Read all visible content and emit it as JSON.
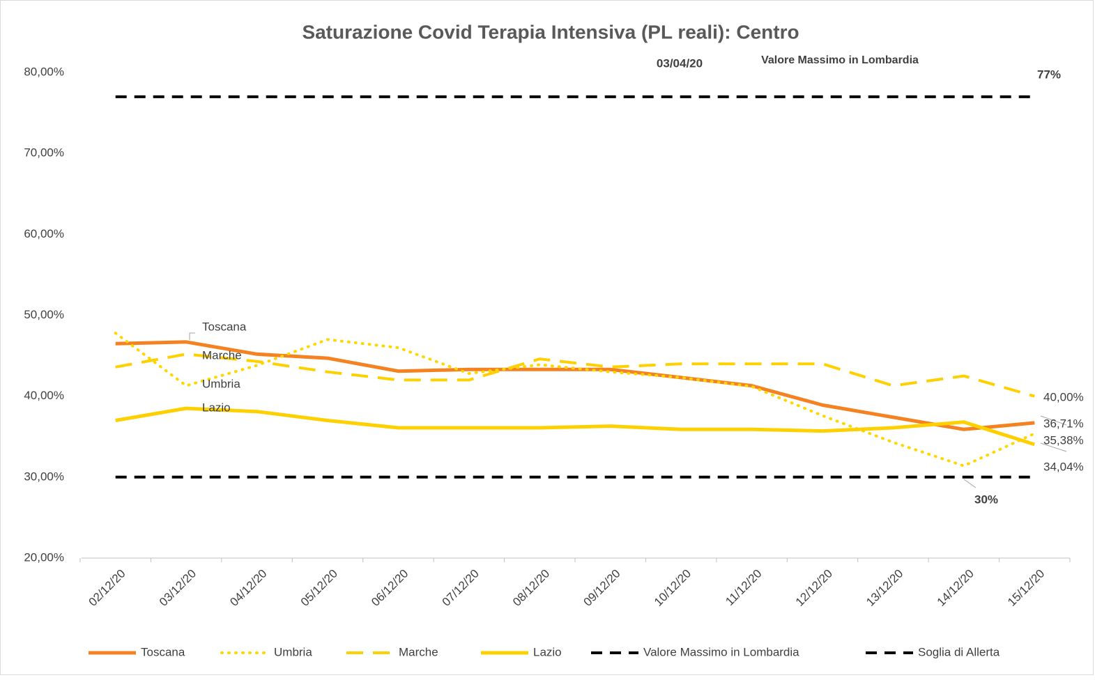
{
  "chart_data": {
    "type": "line",
    "title": "Saturazione Covid Terapia Intensiva (PL reali): Centro",
    "annotations": [
      "03/04/20",
      "Valore Massimo in Lombardia"
    ],
    "categories": [
      "02/12/20",
      "03/12/20",
      "04/12/20",
      "05/12/20",
      "06/12/20",
      "07/12/20",
      "08/12/20",
      "09/12/20",
      "10/12/20",
      "11/12/20",
      "12/12/20",
      "13/12/20",
      "14/12/20",
      "15/12/20"
    ],
    "ylim": [
      20,
      80
    ],
    "yticks": [
      {
        "value": 20,
        "label": "20,00%"
      },
      {
        "value": 30,
        "label": "30,00%"
      },
      {
        "value": 40,
        "label": "40,00%"
      },
      {
        "value": 50,
        "label": "50,00%"
      },
      {
        "value": 60,
        "label": "60,00%"
      },
      {
        "value": 70,
        "label": "70,00%"
      },
      {
        "value": 80,
        "label": "80,00%"
      }
    ],
    "grid": false,
    "legend": "bottom",
    "series": [
      {
        "name": "Toscana",
        "color": "#f58220",
        "dash": "solid",
        "values": [
          46.5,
          46.7,
          45.2,
          44.7,
          43.1,
          43.3,
          43.3,
          43.3,
          42.3,
          41.3,
          38.9,
          37.4,
          35.9,
          36.71
        ],
        "value_labels": [
          null,
          null,
          null,
          null,
          null,
          null,
          null,
          null,
          null,
          null,
          null,
          null,
          null,
          "36,71%"
        ]
      },
      {
        "name": "Umbria",
        "color": "#ffd700",
        "dash": "dotted",
        "values": [
          47.8,
          41.3,
          43.8,
          47.0,
          46.0,
          42.8,
          43.9,
          43.0,
          42.3,
          41.2,
          37.6,
          34.3,
          31.4,
          35.38
        ],
        "value_labels": [
          null,
          null,
          null,
          null,
          null,
          null,
          null,
          null,
          null,
          null,
          null,
          null,
          null,
          "35,38%"
        ]
      },
      {
        "name": "Marche",
        "color": "#ffd000",
        "dash": "dashed",
        "values": [
          43.6,
          45.2,
          44.3,
          43.0,
          42.0,
          42.0,
          44.6,
          43.6,
          44.0,
          44.0,
          44.0,
          41.3,
          42.5,
          40.0
        ],
        "value_labels": [
          null,
          null,
          null,
          null,
          null,
          null,
          null,
          null,
          null,
          null,
          null,
          null,
          null,
          "40,00%"
        ]
      },
      {
        "name": "Lazio",
        "color": "#ffd000",
        "dash": "solid",
        "values": [
          37.0,
          38.5,
          38.1,
          37.0,
          36.1,
          36.1,
          36.1,
          36.3,
          35.9,
          35.9,
          35.7,
          36.1,
          36.8,
          34.04
        ],
        "value_labels": [
          null,
          null,
          null,
          null,
          null,
          null,
          null,
          null,
          null,
          null,
          null,
          null,
          null,
          "34,04%"
        ]
      },
      {
        "name": "Valore Massimo in Lombardia",
        "color": "#000000",
        "dash": "bigdash",
        "values": [
          77,
          77,
          77,
          77,
          77,
          77,
          77,
          77,
          77,
          77,
          77,
          77,
          77,
          77
        ],
        "value_labels": [
          null,
          null,
          null,
          null,
          null,
          null,
          null,
          null,
          null,
          null,
          null,
          null,
          null,
          "77%"
        ]
      },
      {
        "name": "Soglia di Allerta",
        "color": "#000000",
        "dash": "bigdash",
        "values": [
          30,
          30,
          30,
          30,
          30,
          30,
          30,
          30,
          30,
          30,
          30,
          30,
          30,
          30
        ],
        "value_labels": [
          null,
          null,
          null,
          null,
          null,
          null,
          null,
          null,
          null,
          null,
          null,
          null,
          "30%",
          null
        ]
      }
    ]
  }
}
